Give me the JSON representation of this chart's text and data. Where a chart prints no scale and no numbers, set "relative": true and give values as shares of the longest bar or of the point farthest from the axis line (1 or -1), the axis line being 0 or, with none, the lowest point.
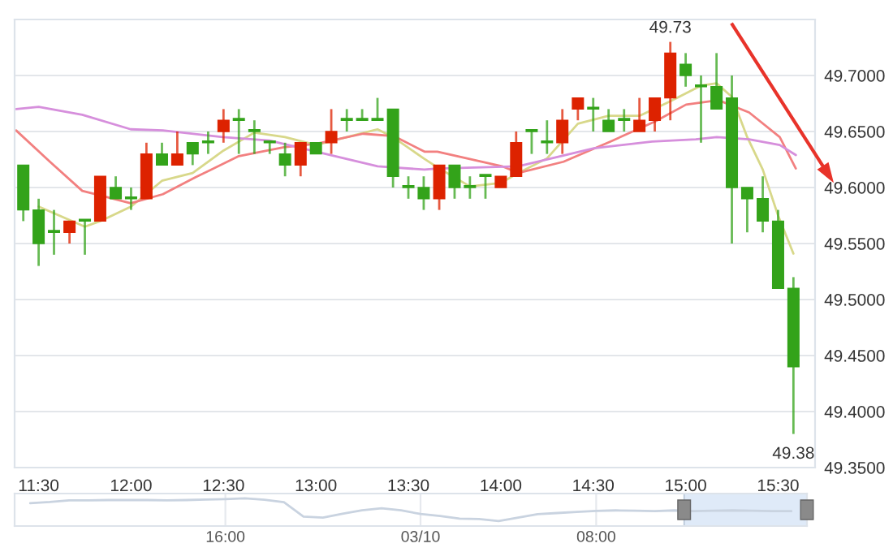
{
  "chart_data": [
    {
      "type": "candlestick",
      "x": [
        11.417,
        11.5,
        11.583,
        11.667,
        11.75,
        11.833,
        11.917,
        12.0,
        12.083,
        12.167,
        12.25,
        12.333,
        12.417,
        12.5,
        12.583,
        12.667,
        12.75,
        12.833,
        12.917,
        13.0,
        13.083,
        13.167,
        13.25,
        13.333,
        13.417,
        13.5,
        13.583,
        13.667,
        13.75,
        13.833,
        13.917,
        14.0,
        14.083,
        14.167,
        14.25,
        14.333,
        14.417,
        14.5,
        14.583,
        14.667,
        14.75,
        14.833,
        14.917,
        15.0,
        15.083,
        15.167,
        15.25,
        15.333,
        15.417,
        15.5,
        15.583
      ],
      "ohlc": [
        [
          49.62,
          49.62,
          49.57,
          49.58
        ],
        [
          49.58,
          49.59,
          49.53,
          49.55
        ],
        [
          49.56,
          49.58,
          49.54,
          49.56
        ],
        [
          49.56,
          49.57,
          49.55,
          49.57
        ],
        [
          49.57,
          49.57,
          49.54,
          49.57
        ],
        [
          49.57,
          49.61,
          49.57,
          49.61
        ],
        [
          49.6,
          49.61,
          49.59,
          49.59
        ],
        [
          49.59,
          49.6,
          49.58,
          49.59
        ],
        [
          49.59,
          49.64,
          49.59,
          49.63
        ],
        [
          49.63,
          49.64,
          49.62,
          49.62
        ],
        [
          49.62,
          49.65,
          49.62,
          49.63
        ],
        [
          49.64,
          49.64,
          49.62,
          49.63
        ],
        [
          49.64,
          49.65,
          49.63,
          49.64
        ],
        [
          49.65,
          49.67,
          49.64,
          49.66
        ],
        [
          49.66,
          49.67,
          49.63,
          49.66
        ],
        [
          49.65,
          49.66,
          49.63,
          49.65
        ],
        [
          49.64,
          49.64,
          49.63,
          49.64
        ],
        [
          49.63,
          49.64,
          49.61,
          49.62
        ],
        [
          49.62,
          49.64,
          49.61,
          49.64
        ],
        [
          49.64,
          49.64,
          49.63,
          49.63
        ],
        [
          49.64,
          49.67,
          49.63,
          49.65
        ],
        [
          49.66,
          49.67,
          49.65,
          49.66
        ],
        [
          49.66,
          49.67,
          49.66,
          49.66
        ],
        [
          49.66,
          49.68,
          49.66,
          49.66
        ],
        [
          49.67,
          49.67,
          49.6,
          49.61
        ],
        [
          49.6,
          49.61,
          49.59,
          49.6
        ],
        [
          49.6,
          49.61,
          49.58,
          49.59
        ],
        [
          49.59,
          49.62,
          49.58,
          49.62
        ],
        [
          49.62,
          49.62,
          49.59,
          49.6
        ],
        [
          49.6,
          49.61,
          49.59,
          49.6
        ],
        [
          49.61,
          49.61,
          49.59,
          49.61
        ],
        [
          49.6,
          49.61,
          49.6,
          49.61
        ],
        [
          49.61,
          49.65,
          49.61,
          49.64
        ],
        [
          49.65,
          49.65,
          49.63,
          49.65
        ],
        [
          49.64,
          49.66,
          49.63,
          49.64
        ],
        [
          49.64,
          49.67,
          49.63,
          49.66
        ],
        [
          49.67,
          49.68,
          49.66,
          49.68
        ],
        [
          49.67,
          49.68,
          49.65,
          49.67
        ],
        [
          49.66,
          49.67,
          49.65,
          49.65
        ],
        [
          49.66,
          49.67,
          49.65,
          49.66
        ],
        [
          49.65,
          49.68,
          49.65,
          49.66
        ],
        [
          49.66,
          49.68,
          49.65,
          49.68
        ],
        [
          49.68,
          49.73,
          49.66,
          49.72
        ],
        [
          49.71,
          49.72,
          49.69,
          49.7
        ],
        [
          49.69,
          49.7,
          49.64,
          49.69
        ],
        [
          49.69,
          49.72,
          49.67,
          49.67
        ],
        [
          49.68,
          49.7,
          49.55,
          49.6
        ],
        [
          49.6,
          49.6,
          49.56,
          49.59
        ],
        [
          49.59,
          49.61,
          49.56,
          49.57
        ],
        [
          49.57,
          49.58,
          49.51,
          49.51
        ],
        [
          49.51,
          49.52,
          49.38,
          49.44
        ]
      ],
      "colors": [
        "#33a31a",
        "#33a31a",
        "#33a31a",
        "#dd2200",
        "#33a31a",
        "#dd2200",
        "#33a31a",
        "#33a31a",
        "#dd2200",
        "#33a31a",
        "#dd2200",
        "#33a31a",
        "#33a31a",
        "#dd2200",
        "#33a31a",
        "#33a31a",
        "#33a31a",
        "#33a31a",
        "#dd2200",
        "#33a31a",
        "#dd2200",
        "#33a31a",
        "#33a31a",
        "#33a31a",
        "#33a31a",
        "#33a31a",
        "#33a31a",
        "#dd2200",
        "#33a31a",
        "#33a31a",
        "#33a31a",
        "#dd2200",
        "#dd2200",
        "#33a31a",
        "#33a31a",
        "#dd2200",
        "#dd2200",
        "#33a31a",
        "#33a31a",
        "#33a31a",
        "#dd2200",
        "#dd2200",
        "#dd2200",
        "#33a31a",
        "#33a31a",
        "#33a31a",
        "#33a31a",
        "#33a31a",
        "#33a31a",
        "#33a31a",
        "#33a31a"
      ],
      "series": [
        {
          "type": "line",
          "color": "#d8d88a",
          "x": [
            11.5,
            11.75,
            11.833,
            12.0,
            12.167,
            12.333,
            12.5,
            12.667,
            12.833,
            13.0,
            13.167,
            13.333,
            13.417,
            13.583,
            13.667,
            13.833,
            14.0,
            14.083,
            14.25,
            14.417,
            14.583,
            14.75,
            14.917,
            15.083,
            15.167,
            15.25,
            15.333,
            15.417,
            15.5,
            15.583
          ],
          "values": [
            49.583,
            49.565,
            49.57,
            49.583,
            49.606,
            49.613,
            49.633,
            49.649,
            49.645,
            49.638,
            49.645,
            49.652,
            49.645,
            49.626,
            49.617,
            49.601,
            49.604,
            49.612,
            49.626,
            49.657,
            49.664,
            49.664,
            49.677,
            49.691,
            49.693,
            49.681,
            49.645,
            49.616,
            49.575,
            49.541
          ]
        },
        {
          "type": "line",
          "color": "#f28080",
          "x": [
            11.378,
            11.561,
            11.736,
            11.832,
            11.998,
            12.172,
            12.347,
            12.583,
            12.827,
            13.002,
            13.255,
            13.421,
            13.587,
            13.657,
            14.007,
            14.094,
            14.339,
            14.592,
            14.836,
            15.002,
            15.177,
            15.343,
            15.509,
            15.596
          ],
          "values": [
            49.651,
            49.623,
            49.597,
            49.593,
            49.586,
            49.594,
            49.609,
            49.628,
            49.636,
            49.639,
            49.648,
            49.646,
            49.632,
            49.632,
            49.619,
            49.613,
            49.623,
            49.641,
            49.659,
            49.674,
            49.678,
            49.667,
            49.645,
            49.617
          ]
        },
        {
          "type": "line",
          "color": "#d68fdc",
          "x": [
            11.378,
            11.5,
            11.736,
            11.998,
            12.172,
            12.496,
            12.749,
            13.002,
            13.334,
            13.587,
            13.657,
            14.094,
            14.504,
            14.819,
            15.055,
            15.168,
            15.343,
            15.509,
            15.596
          ],
          "values": [
            49.67,
            49.672,
            49.665,
            49.652,
            49.651,
            49.645,
            49.642,
            49.632,
            49.619,
            49.616,
            49.617,
            49.619,
            49.635,
            49.641,
            49.643,
            49.645,
            49.643,
            49.638,
            49.629
          ]
        }
      ],
      "xlim": [
        11.37,
        15.7
      ],
      "xticks": [
        {
          "value": 11.5,
          "label": "11:30"
        },
        {
          "value": 12.0,
          "label": "12:00"
        },
        {
          "value": 12.5,
          "label": "12:30"
        },
        {
          "value": 13.0,
          "label": "13:00"
        },
        {
          "value": 13.5,
          "label": "13:30"
        },
        {
          "value": 14.0,
          "label": "14:00"
        },
        {
          "value": 14.5,
          "label": "14:30"
        },
        {
          "value": 15.0,
          "label": "15:00"
        },
        {
          "value": 15.5,
          "label": "15:30"
        }
      ],
      "ylim": [
        49.35,
        49.75
      ],
      "yticks": [
        {
          "value": 49.35,
          "label": "49.3500"
        },
        {
          "value": 49.4,
          "label": "49.4000"
        },
        {
          "value": 49.45,
          "label": "49.4500"
        },
        {
          "value": 49.5,
          "label": "49.5000"
        },
        {
          "value": 49.55,
          "label": "49.5500"
        },
        {
          "value": 49.6,
          "label": "49.6000"
        },
        {
          "value": 49.65,
          "label": "49.6500"
        },
        {
          "value": 49.7,
          "label": "49.7000"
        }
      ],
      "grid": "y",
      "annotations": [
        {
          "text": "49.73",
          "x": 14.917,
          "y": 49.73
        },
        {
          "text": "49.38",
          "x": 15.583,
          "y": 49.38
        }
      ]
    },
    {
      "type": "line",
      "relative": true,
      "color": "#c9d3e0",
      "categories": [
        null,
        null,
        null,
        null,
        null,
        null,
        null,
        null,
        null,
        null,
        "16:00",
        null,
        null,
        null,
        null,
        null,
        null,
        null,
        null,
        null,
        "03/10",
        null,
        null,
        null,
        null,
        null,
        null,
        null,
        null,
        "08:00",
        null,
        null,
        null,
        null,
        null,
        null,
        null,
        null,
        null,
        null
      ],
      "values": [
        0.8,
        0.85,
        0.92,
        0.92,
        0.93,
        0.93,
        0.93,
        0.92,
        0.93,
        0.95,
        0.97,
        1.0,
        0.94,
        0.84,
        0.24,
        0.2,
        0.36,
        0.5,
        0.59,
        0.5,
        0.35,
        0.27,
        0.16,
        0.14,
        0.06,
        0.2,
        0.34,
        0.39,
        0.44,
        0.48,
        0.5,
        0.49,
        0.47,
        0.5,
        0.47,
        0.49,
        0.5,
        0.49,
        0.47,
        0.47
      ],
      "grid": "x",
      "tick_labels": "x"
    }
  ]
}
